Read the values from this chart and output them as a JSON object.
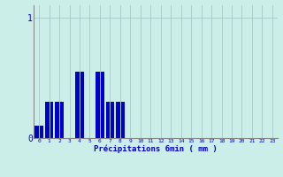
{
  "hours": [
    0,
    1,
    2,
    3,
    4,
    5,
    6,
    7,
    8,
    9,
    10,
    11,
    12,
    13,
    14,
    15,
    16,
    17,
    18,
    19,
    20,
    21,
    22,
    23
  ],
  "precip_vals": [
    0.1,
    0.3,
    0.3,
    0.0,
    0.55,
    0.0,
    0.55,
    0.3,
    0.3,
    0.0,
    0.0,
    0.0,
    0.0,
    0.0,
    0.0,
    0.0,
    0.0,
    0.0,
    0.0,
    0.0,
    0.0,
    0.0,
    0.0,
    0.0
  ],
  "bar_color": "#0000cc",
  "background_color": "#cceee8",
  "grid_color": "#aacccc",
  "axis_color": "#888888",
  "text_color": "#0000cc",
  "xlabel": "Précipitations 6min ( mm )",
  "ytick_labels": [
    "0",
    "1"
  ],
  "ytick_vals": [
    0,
    1
  ],
  "ylim": [
    0,
    1.1
  ],
  "xlim": [
    -0.5,
    23.5
  ]
}
